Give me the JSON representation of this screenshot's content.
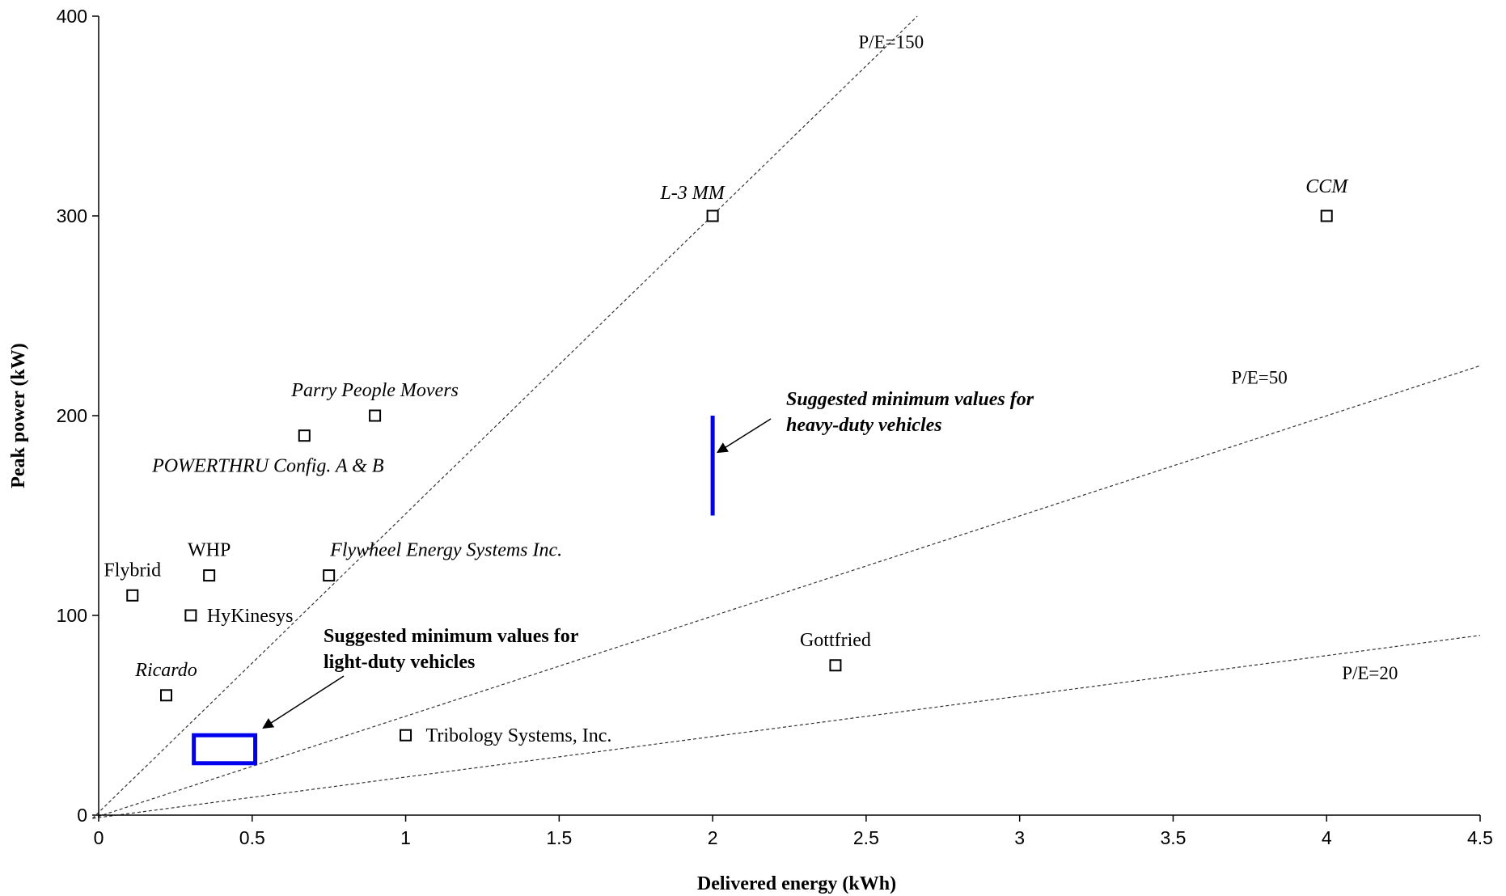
{
  "chart_data": {
    "type": "scatter",
    "title": "",
    "xlabel": "Delivered energy (kWh)",
    "ylabel": "Peak power (kW)",
    "xlim": [
      0,
      4.5
    ],
    "ylim": [
      0,
      400
    ],
    "xticks": [
      "0",
      "0.5",
      "1",
      "1.5",
      "2",
      "2.5",
      "3",
      "3.5",
      "4",
      "4.5"
    ],
    "yticks": [
      "0",
      "100",
      "200",
      "300",
      "400"
    ],
    "grid": false,
    "legend": "none",
    "marker": "open-square",
    "points": [
      {
        "label": "Flybrid",
        "x": 0.11,
        "y": 110,
        "italic": false
      },
      {
        "label": "WHP",
        "x": 0.36,
        "y": 120,
        "italic": false
      },
      {
        "label": "HyKinesys",
        "x": 0.3,
        "y": 100,
        "italic": false
      },
      {
        "label": "Ricardo",
        "x": 0.22,
        "y": 60,
        "italic": true
      },
      {
        "label": "Flywheel Energy Systems Inc.",
        "x": 0.75,
        "y": 120,
        "italic": true
      },
      {
        "label": "Parry People Movers",
        "x": 0.9,
        "y": 200,
        "italic": true
      },
      {
        "label": "POWERTHRU Config. A & B",
        "x": 0.67,
        "y": 190,
        "italic": true
      },
      {
        "label": "Tribology Systems, Inc.",
        "x": 1.0,
        "y": 40,
        "italic": false
      },
      {
        "label": "L-3 MM",
        "x": 2.0,
        "y": 300,
        "italic": true
      },
      {
        "label": "Gottfried",
        "x": 2.4,
        "y": 75,
        "italic": false
      },
      {
        "label": "CCM",
        "x": 4.0,
        "y": 300,
        "italic": true
      }
    ],
    "reference_lines": [
      {
        "label": "P/E=150",
        "slope": 150
      },
      {
        "label": "P/E=50",
        "slope": 50
      },
      {
        "label": "P/E=20",
        "slope": 20
      }
    ],
    "regions": [
      {
        "type": "rect",
        "x": [
          0.31,
          0.51
        ],
        "y": [
          26,
          40
        ],
        "color": "#0000EE"
      },
      {
        "type": "vline",
        "x": 2.0,
        "y": [
          150,
          200
        ],
        "color": "#0000EE"
      }
    ],
    "annotations": [
      {
        "lines": [
          "Suggested minimum values for",
          "heavy-duty vehicles"
        ],
        "italic": true,
        "target": [
          2.0,
          180
        ]
      },
      {
        "lines": [
          "Suggested minimum  values for",
          "light-duty  vehicles"
        ],
        "italic": false,
        "target": [
          0.52,
          42
        ]
      }
    ]
  }
}
